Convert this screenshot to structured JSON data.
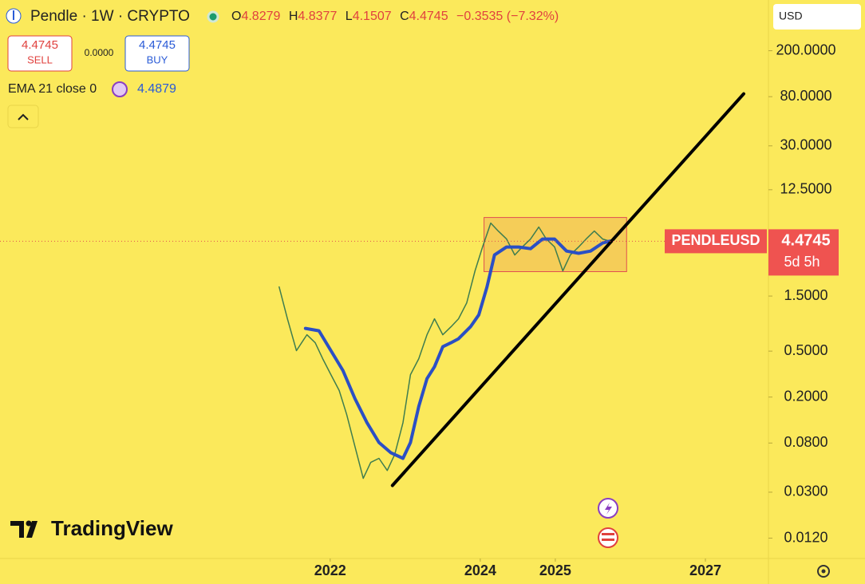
{
  "header": {
    "symbol": "Pendle · 1W · CRYPTO",
    "open_label": "O",
    "open": "4.8279",
    "high_label": "H",
    "high": "4.8377",
    "low_label": "L",
    "low": "4.1507",
    "close_label": "C",
    "change": "−0.3535 (−7.32%)"
  },
  "trade": {
    "sell": "SELL",
    "spread": "0.0000",
    "buy": "BUY"
  },
  "currency": "USD",
  "price_tag": {
    "countdown": "5d 5h"
  },
  "logo": "TradingView",
  "chart_data": {
    "type": "line",
    "log_scale": true,
    "grid": false,
    "xlim": [
      2017.6,
      2027.84
    ],
    "xticks": [
      2022,
      2024,
      2025,
      2027
    ],
    "ylim": [
      0.008,
      550
    ],
    "yticks": [
      {
        "value": 200,
        "label": "200.0000"
      },
      {
        "value": 80,
        "label": "80.0000"
      },
      {
        "value": 30,
        "label": "30.0000"
      },
      {
        "value": 12.5,
        "label": "12.5000"
      },
      {
        "value": 1.5,
        "label": "1.5000"
      },
      {
        "value": 0.5,
        "label": "0.5000"
      },
      {
        "value": 0.2,
        "label": "0.2000"
      },
      {
        "value": 0.08,
        "label": "0.0800"
      },
      {
        "value": 0.03,
        "label": "0.0300"
      },
      {
        "value": 0.012,
        "label": "0.0120"
      }
    ],
    "series": [
      {
        "name": "PENDLEUSD",
        "color": "#3f7d4f",
        "x": [
          2021.32,
          2021.43,
          2021.55,
          2021.69,
          2021.8,
          2021.9,
          2022.01,
          2022.12,
          2022.22,
          2022.33,
          2022.44,
          2022.54,
          2022.65,
          2022.76,
          2022.86,
          2022.97,
          2023.07,
          2023.18,
          2023.29,
          2023.39,
          2023.5,
          2023.61,
          2023.71,
          2023.82,
          2023.93,
          2024.03,
          2024.14,
          2024.24,
          2024.35,
          2024.46,
          2024.56,
          2024.67,
          2024.78,
          2024.88,
          2024.99,
          2025.1,
          2025.2,
          2025.31,
          2025.41,
          2025.52,
          2025.63,
          2025.73
        ],
        "values": [
          1.8,
          0.953,
          0.505,
          0.693,
          0.591,
          0.43,
          0.313,
          0.228,
          0.141,
          0.0747,
          0.0395,
          0.0543,
          0.0589,
          0.0463,
          0.0637,
          0.12,
          0.313,
          0.43,
          0.693,
          0.953,
          0.693,
          0.813,
          0.953,
          1.31,
          2.48,
          3.99,
          6.43,
          5.48,
          4.68,
          3.4,
          3.99,
          4.68,
          5.94,
          4.68,
          3.99,
          2.48,
          3.4,
          3.99,
          4.68,
          5.48,
          4.68,
          4.4745
        ]
      },
      {
        "name": "EMA 21 close 0",
        "color": "#2b4fc4",
        "x": [
          2021.67,
          2021.85,
          2022.01,
          2022.17,
          2022.33,
          2022.49,
          2022.65,
          2022.81,
          2022.97,
          2023.07,
          2023.18,
          2023.29,
          2023.39,
          2023.5,
          2023.61,
          2023.71,
          2023.87,
          2023.98,
          2024.09,
          2024.19,
          2024.35,
          2024.51,
          2024.67,
          2024.83,
          2024.99,
          2025.15,
          2025.31,
          2025.47,
          2025.63,
          2025.73
        ],
        "values": [
          0.787,
          0.75,
          0.505,
          0.339,
          0.194,
          0.12,
          0.0809,
          0.0658,
          0.0589,
          0.0809,
          0.166,
          0.289,
          0.366,
          0.546,
          0.591,
          0.64,
          0.813,
          1.03,
          1.8,
          3.4,
          3.99,
          3.99,
          3.86,
          4.68,
          4.68,
          3.68,
          3.52,
          3.68,
          4.32,
          4.4879
        ]
      }
    ],
    "trendline": {
      "color": "#000000",
      "x": [
        2022.83,
        2027.51
      ],
      "y": [
        0.0343,
        84.7
      ]
    },
    "range_box": {
      "color": "#e05050",
      "x": [
        2024.05,
        2025.95
      ],
      "y": [
        2.44,
        7.19
      ]
    }
  }
}
